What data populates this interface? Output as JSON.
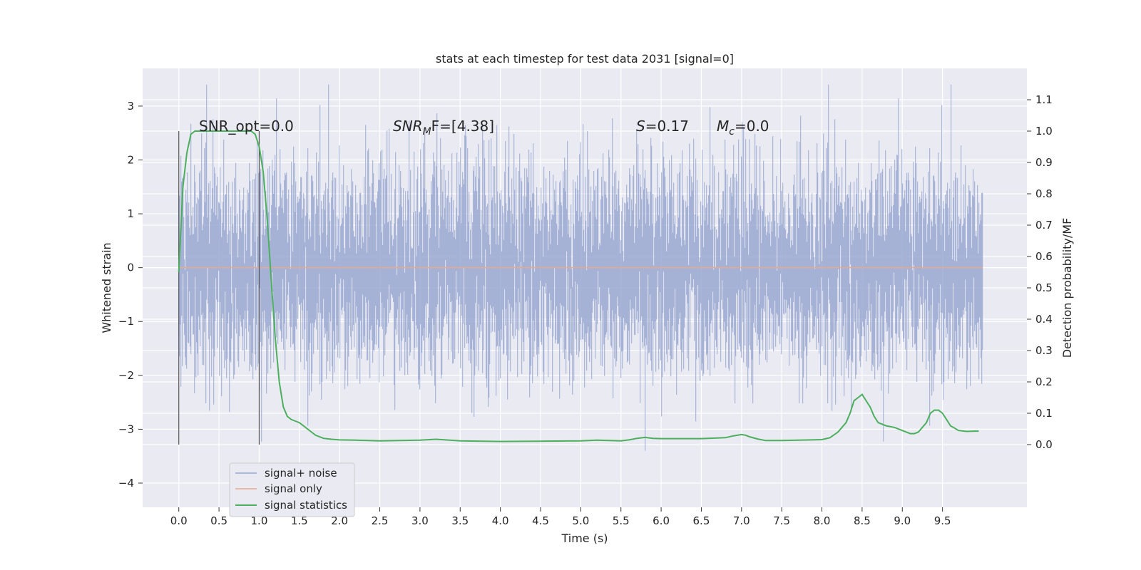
{
  "chart_data": {
    "type": "line",
    "title": "stats at each timestep for test data 2031 [signal=0]",
    "xlabel": "Time (s)",
    "ylabel": "Whitened strain",
    "ylabel_right": "Detection probability/MF",
    "xlim": [
      -0.45,
      10.55
    ],
    "ylim": [
      -4.45,
      3.7
    ],
    "ylim_right": [
      -0.2,
      1.2
    ],
    "xticks": [
      "0.0",
      "0.5",
      "1.0",
      "1.5",
      "2.0",
      "2.5",
      "3.0",
      "3.5",
      "4.0",
      "4.5",
      "5.0",
      "5.5",
      "6.0",
      "6.5",
      "7.0",
      "7.5",
      "8.0",
      "8.5",
      "9.0",
      "9.5"
    ],
    "yticks": [
      "3",
      "2",
      "1",
      "0",
      "−1",
      "−2",
      "−3",
      "−4"
    ],
    "yticks_right": [
      "0.0",
      "0.1",
      "0.2",
      "0.3",
      "0.4",
      "0.5",
      "0.6",
      "0.7",
      "0.8",
      "0.9",
      "1.0",
      "1.1"
    ],
    "grid": true,
    "legend_position": "lower-left",
    "annotations": {
      "snr_opt": "SNR_opt=0.0",
      "snr_mf": "F=[4.38]",
      "stat_s": "=0.17",
      "mc": "=0.0"
    },
    "series": [
      {
        "name": "signal+ noise",
        "color": "#98a8d2",
        "x_range": [
          0.0,
          10.0
        ],
        "envelope_min": -3.4,
        "envelope_max": 3.4
      },
      {
        "name": "signal only",
        "color": "#e8a88a",
        "x": [
          0.0,
          10.0
        ],
        "y": [
          0.0,
          0.0
        ]
      },
      {
        "name": "signal statistics",
        "color": "#4caf5d",
        "axis": "right",
        "x": [
          0.0,
          0.05,
          0.1,
          0.15,
          0.2,
          0.3,
          0.4,
          0.5,
          0.6,
          0.7,
          0.8,
          0.9,
          0.95,
          1.0,
          1.05,
          1.1,
          1.15,
          1.2,
          1.25,
          1.3,
          1.35,
          1.4,
          1.45,
          1.5,
          1.55,
          1.6,
          1.7,
          1.8,
          1.9,
          2.0,
          2.2,
          2.5,
          3.0,
          3.2,
          3.5,
          4.0,
          4.5,
          5.0,
          5.2,
          5.5,
          5.6,
          5.7,
          5.8,
          5.9,
          6.0,
          6.5,
          6.8,
          6.9,
          7.0,
          7.05,
          7.1,
          7.2,
          7.3,
          7.5,
          8.0,
          8.1,
          8.2,
          8.3,
          8.35,
          8.4,
          8.45,
          8.5,
          8.55,
          8.6,
          8.65,
          8.7,
          8.8,
          8.9,
          9.0,
          9.1,
          9.15,
          9.2,
          9.3,
          9.35,
          9.4,
          9.45,
          9.5,
          9.55,
          9.6,
          9.7,
          9.8,
          9.9,
          9.95
        ],
        "y": [
          0.55,
          0.82,
          0.93,
          0.99,
          1.0,
          1.0,
          1.0,
          1.0,
          1.0,
          1.0,
          1.0,
          1.0,
          0.99,
          0.95,
          0.87,
          0.72,
          0.52,
          0.34,
          0.2,
          0.12,
          0.09,
          0.08,
          0.075,
          0.07,
          0.06,
          0.05,
          0.03,
          0.02,
          0.017,
          0.015,
          0.014,
          0.012,
          0.014,
          0.017,
          0.012,
          0.01,
          0.011,
          0.012,
          0.014,
          0.012,
          0.015,
          0.02,
          0.023,
          0.02,
          0.019,
          0.019,
          0.022,
          0.028,
          0.032,
          0.03,
          0.025,
          0.018,
          0.013,
          0.013,
          0.016,
          0.022,
          0.04,
          0.07,
          0.1,
          0.14,
          0.15,
          0.16,
          0.14,
          0.12,
          0.09,
          0.07,
          0.06,
          0.055,
          0.045,
          0.035,
          0.035,
          0.04,
          0.07,
          0.1,
          0.11,
          0.11,
          0.1,
          0.08,
          0.06,
          0.045,
          0.042,
          0.043,
          0.043
        ]
      }
    ]
  }
}
